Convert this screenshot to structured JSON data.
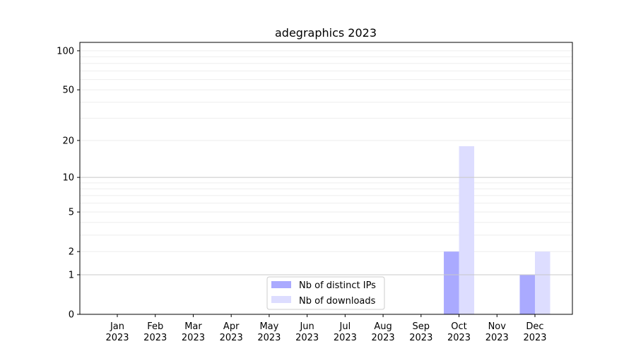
{
  "chart_data": {
    "type": "bar",
    "title": "adegraphics 2023",
    "xlabel": "",
    "ylabel": "",
    "yscale": "log(1+y)",
    "ylim": [
      0,
      116
    ],
    "yticks": [
      0,
      1,
      2,
      5,
      10,
      20,
      50,
      100
    ],
    "grid": true,
    "legend_position": "bottom-center",
    "categories": [
      "Jan\n2023",
      "Feb\n2023",
      "Mar\n2023",
      "Apr\n2023",
      "May\n2023",
      "Jun\n2023",
      "Jul\n2023",
      "Aug\n2023",
      "Sep\n2023",
      "Oct\n2023",
      "Nov\n2023",
      "Dec\n2023"
    ],
    "series": [
      {
        "name": "Nb of distinct IPs",
        "color": "#aaaaff",
        "values": [
          0,
          0,
          0,
          0,
          0,
          0,
          0,
          0,
          0,
          2,
          0,
          1
        ]
      },
      {
        "name": "Nb of downloads",
        "color": "#ddddff",
        "values": [
          0,
          0,
          0,
          0,
          0,
          0,
          0,
          0,
          0,
          18,
          0,
          2
        ]
      }
    ]
  }
}
